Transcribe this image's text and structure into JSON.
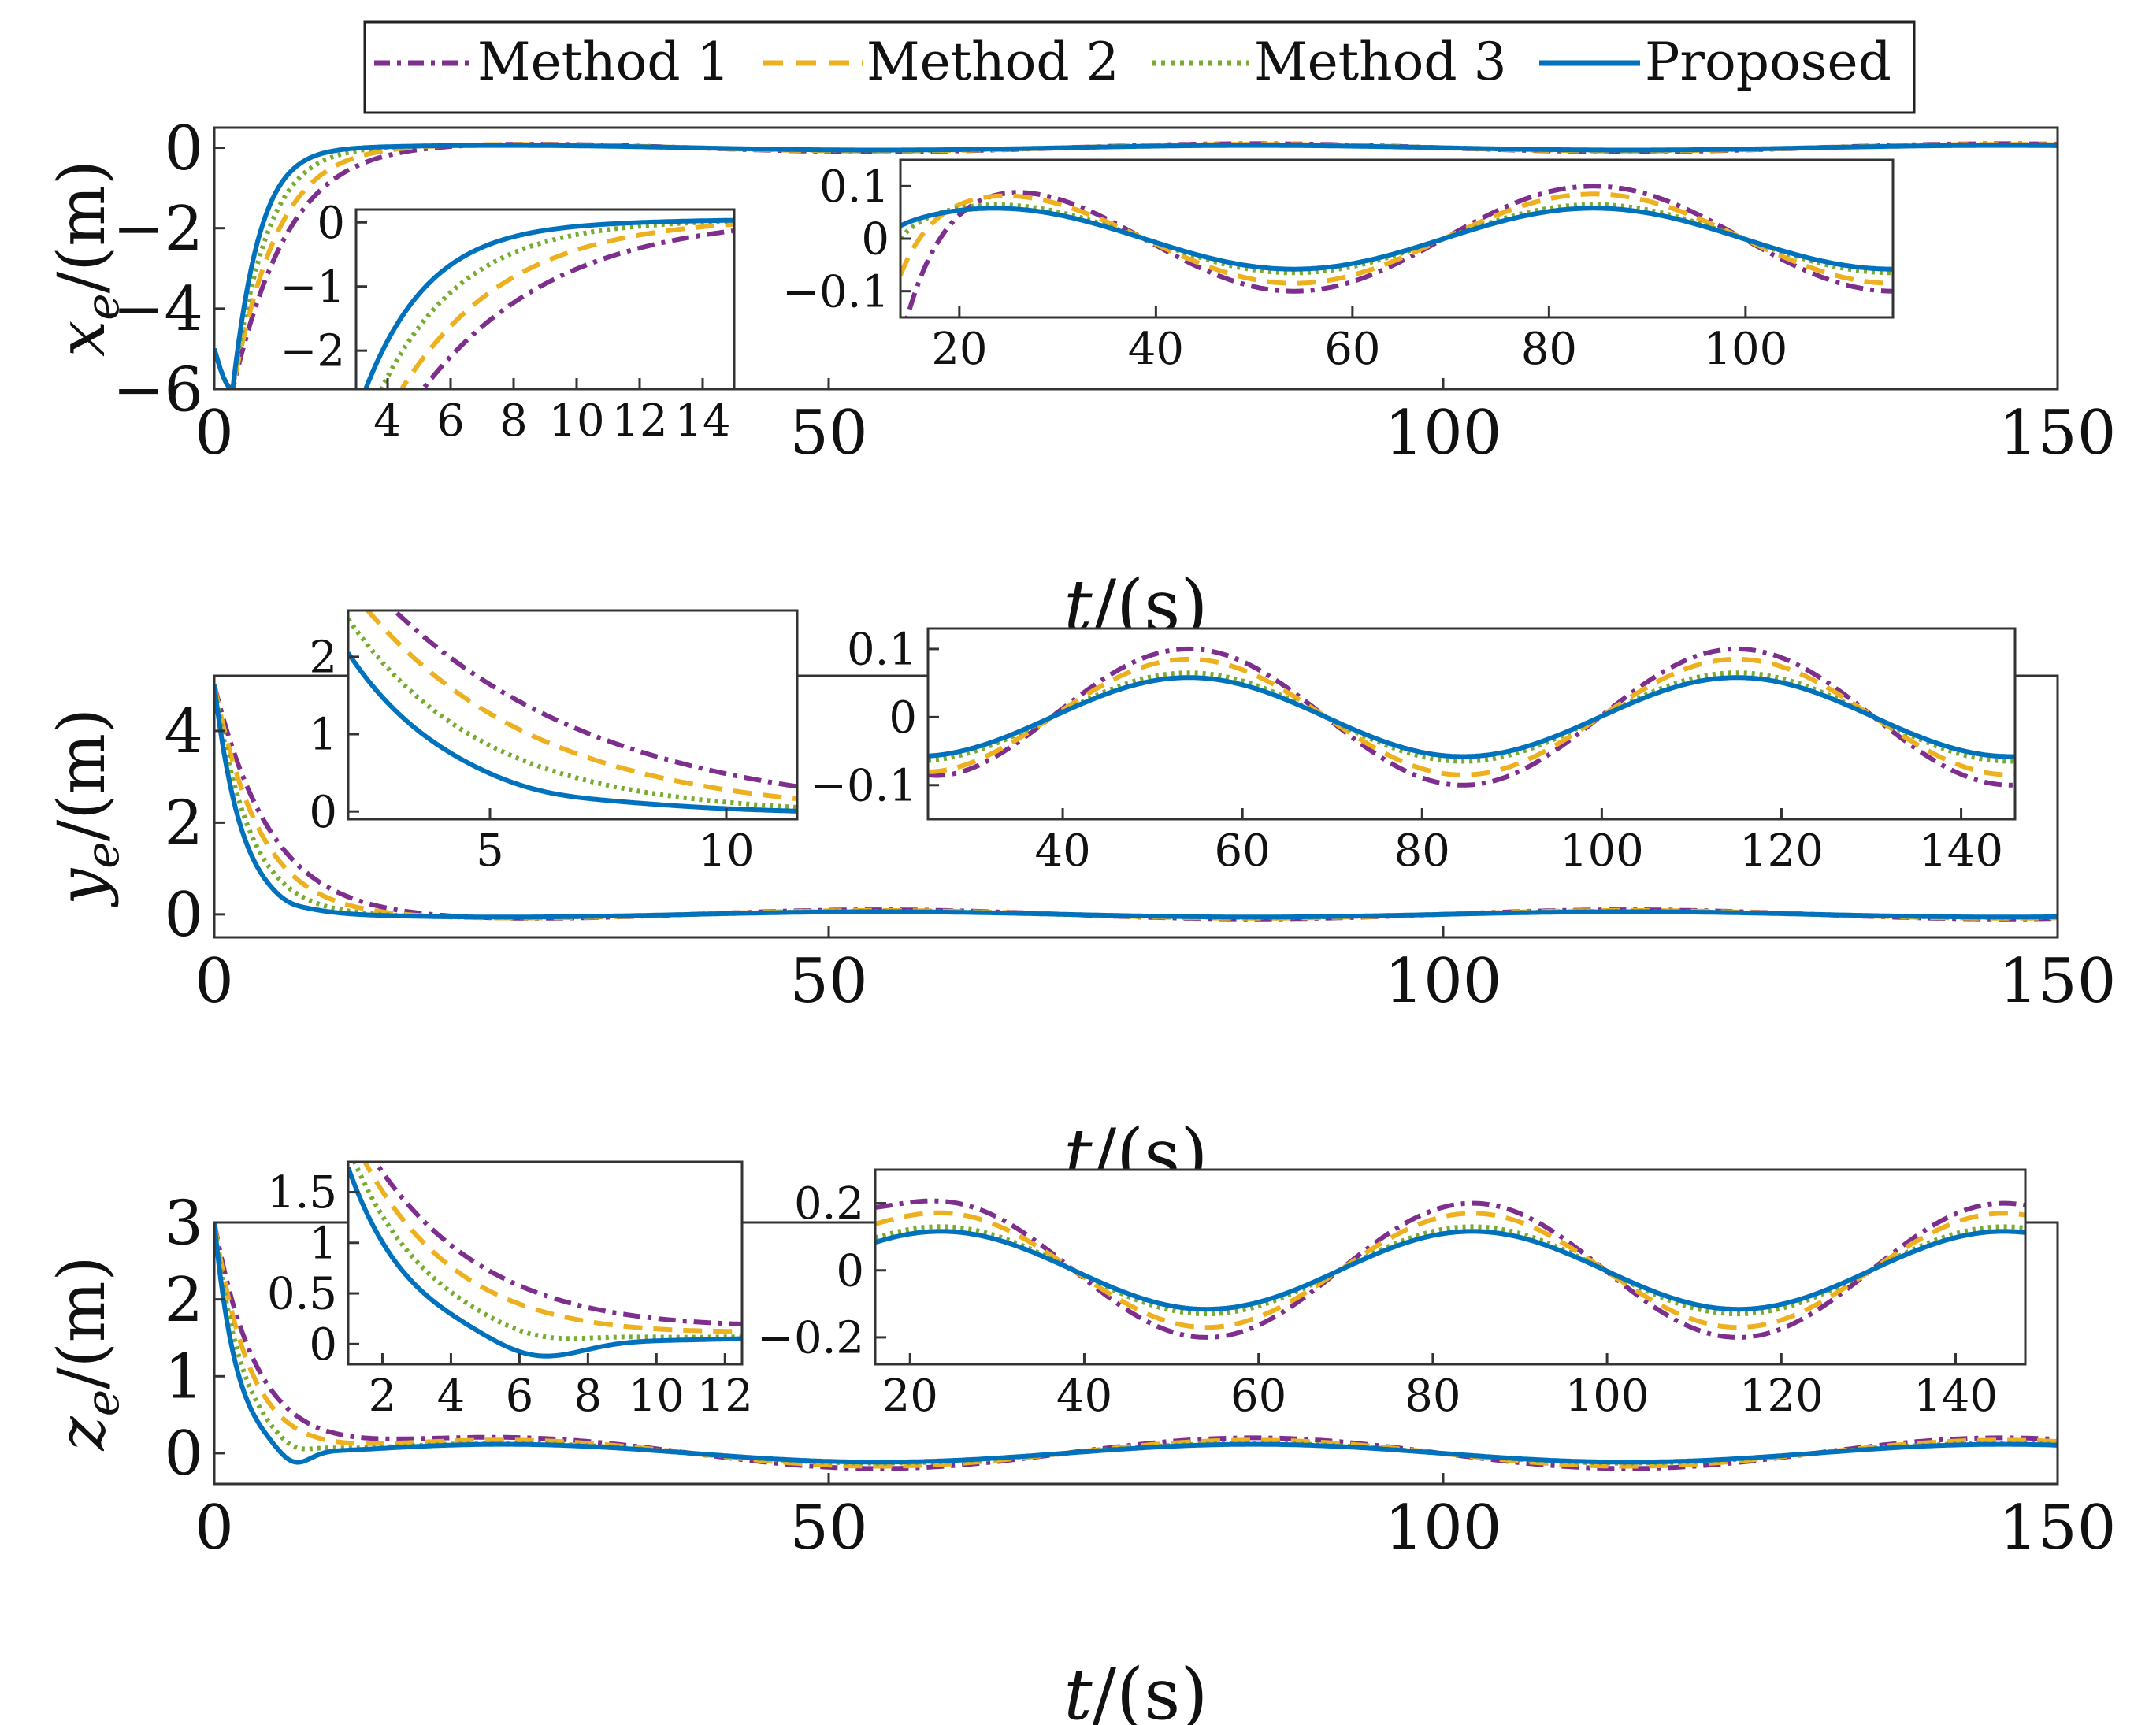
{
  "legend": {
    "entries": [
      {
        "label": "Method 1",
        "color": "#7E2F8E",
        "dash": "dashdot"
      },
      {
        "label": "Method 2",
        "color": "#EDB120",
        "dash": "dash"
      },
      {
        "label": "Method 3",
        "color": "#77AC30",
        "dash": "dot"
      },
      {
        "label": "Proposed",
        "color": "#0072BD",
        "dash": "solid"
      }
    ]
  },
  "chart_data": [
    {
      "type": "line",
      "id": "xe",
      "ylabel_var": "x",
      "ylabel_sub": "e",
      "ylabel_unit": "/(m)",
      "xlabel_var": "t",
      "xlabel_unit": "/(s)",
      "xlim": [
        0,
        150
      ],
      "ylim": [
        -6,
        0.5
      ],
      "xticks": [
        0,
        50,
        100,
        150
      ],
      "yticks": [
        0,
        -2,
        -4,
        -6
      ],
      "ytick_labels": [
        "0",
        "−2",
        "−4",
        "−6"
      ],
      "start": -5,
      "min": -6,
      "settle": 0.6,
      "lat_amp": 0.1,
      "lat_phase": 0,
      "insets": [
        {
          "id": "xe_in1",
          "xlim": [
            3,
            15
          ],
          "ylim": [
            -2.6,
            0.2
          ],
          "xticks": [
            4,
            6,
            8,
            10,
            12,
            14
          ],
          "yticks": [
            0,
            -1,
            -2
          ],
          "ytick_labels": [
            "0",
            "−1",
            "−2"
          ]
        },
        {
          "id": "xe_in2",
          "xlim": [
            14,
            115
          ],
          "ylim": [
            -0.15,
            0.15
          ],
          "xticks": [
            20,
            40,
            60,
            80,
            100
          ],
          "yticks": [
            0.1,
            0,
            -0.1
          ],
          "ytick_labels": [
            "0.1",
            "0",
            "−0.1"
          ]
        }
      ]
    },
    {
      "type": "line",
      "id": "ye",
      "ylabel_var": "y",
      "ylabel_sub": "e",
      "ylabel_unit": "/(m)",
      "xlabel_var": "t",
      "xlabel_unit": "/(s)",
      "xlim": [
        0,
        150
      ],
      "ylim": [
        -0.5,
        5.2
      ],
      "xticks": [
        0,
        50,
        100,
        150
      ],
      "yticks": [
        0,
        2,
        4
      ],
      "ytick_labels": [
        "0",
        "2",
        "4"
      ],
      "start": 5,
      "min": null,
      "settle": 1.6,
      "lat_amp": 0.1,
      "lat_phase": 3.14159,
      "insets": [
        {
          "id": "ye_in1",
          "xlim": [
            2,
            11.5
          ],
          "ylim": [
            -0.1,
            2.6
          ],
          "xticks": [
            5,
            10
          ],
          "yticks": [
            2,
            1,
            0
          ],
          "ytick_labels": [
            "2",
            "1",
            "0"
          ]
        },
        {
          "id": "ye_in2",
          "xlim": [
            25,
            146
          ],
          "ylim": [
            -0.15,
            0.13
          ],
          "xticks": [
            40,
            60,
            80,
            100,
            120,
            140
          ],
          "yticks": [
            0.1,
            0,
            -0.1
          ],
          "ytick_labels": [
            "0.1",
            "0",
            "−0.1"
          ]
        }
      ]
    },
    {
      "type": "line",
      "id": "ze",
      "ylabel_var": "z",
      "ylabel_sub": "e",
      "ylabel_unit": "/(m)",
      "xlabel_var": "t",
      "xlabel_unit": "/(s)",
      "xlim": [
        0,
        150
      ],
      "ylim": [
        -0.4,
        3.0
      ],
      "xticks": [
        0,
        50,
        100,
        150
      ],
      "yticks": [
        0,
        1,
        2,
        3
      ],
      "ytick_labels": [
        "0",
        "1",
        "2",
        "3"
      ],
      "start": 3,
      "min": null,
      "settle": 1.8,
      "lat_amp": 0.2,
      "lat_phase": 0,
      "insets": [
        {
          "id": "ze_in1",
          "xlim": [
            1,
            12.5
          ],
          "ylim": [
            -0.2,
            1.8
          ],
          "xticks": [
            2,
            4,
            6,
            8,
            10,
            12
          ],
          "yticks": [
            1.5,
            1,
            0.5,
            0
          ],
          "ytick_labels": [
            "1.5",
            "1",
            "0.5",
            "0"
          ]
        },
        {
          "id": "ze_in2",
          "xlim": [
            16,
            148
          ],
          "ylim": [
            -0.28,
            0.3
          ],
          "xticks": [
            20,
            40,
            60,
            80,
            100,
            120,
            140
          ],
          "yticks": [
            0.2,
            0,
            -0.2
          ],
          "ytick_labels": [
            "0.2",
            "0",
            "−0.2"
          ]
        }
      ]
    }
  ]
}
